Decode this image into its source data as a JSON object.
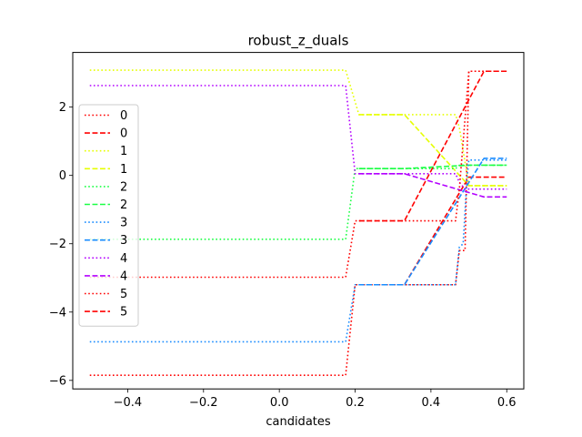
{
  "chart_data": {
    "type": "line",
    "title": "robust_z_duals",
    "xlabel": "candidates",
    "ylabel": "",
    "xlim": [
      -0.545,
      0.645
    ],
    "ylim": [
      -6.25,
      3.6
    ],
    "xticks": [
      -0.4,
      -0.2,
      0.0,
      0.2,
      0.4,
      0.6
    ],
    "xtick_labels": [
      "−0.4",
      "−0.2",
      "0.0",
      "0.2",
      "0.4",
      "0.6"
    ],
    "yticks": [
      -6,
      -4,
      -2,
      0,
      2
    ],
    "ytick_labels": [
      "−6",
      "−4",
      "−2",
      "0",
      "2"
    ],
    "grid": false,
    "legend_position": "left",
    "series": [
      {
        "name": "0",
        "color": "#ff0000",
        "style": "dotted",
        "x": [
          -0.5,
          0.175,
          0.2,
          0.21,
          0.33,
          0.465,
          0.475,
          0.49,
          0.5,
          0.6
        ],
        "y": [
          -5.85,
          -5.85,
          -3.2,
          -3.2,
          -3.2,
          -3.2,
          -2.2,
          -2.2,
          3.05,
          3.05
        ]
      },
      {
        "name": "0",
        "color": "#ff0000",
        "style": "dashed",
        "x": [
          0.21,
          0.33,
          0.5,
          0.6
        ],
        "y": [
          -3.2,
          -3.2,
          -0.05,
          -0.05
        ]
      },
      {
        "name": "1",
        "color": "#e6ff00",
        "style": "dotted",
        "x": [
          -0.5,
          0.175,
          0.21,
          0.465,
          0.475,
          0.5,
          0.6
        ],
        "y": [
          3.08,
          3.08,
          1.78,
          1.78,
          1.4,
          -0.3,
          -0.3
        ]
      },
      {
        "name": "1",
        "color": "#e6ff00",
        "style": "dashed",
        "x": [
          0.21,
          0.33,
          0.5,
          0.6
        ],
        "y": [
          1.78,
          1.78,
          -0.3,
          -0.3
        ]
      },
      {
        "name": "2",
        "color": "#1aff44",
        "style": "dotted",
        "x": [
          -0.5,
          0.175,
          0.2,
          0.465,
          0.475,
          0.6
        ],
        "y": [
          -1.87,
          -1.87,
          0.2,
          0.2,
          0.3,
          0.3
        ]
      },
      {
        "name": "2",
        "color": "#1aff44",
        "style": "dashed",
        "x": [
          0.21,
          0.33,
          0.5,
          0.6
        ],
        "y": [
          0.2,
          0.2,
          0.3,
          0.3
        ]
      },
      {
        "name": "3",
        "color": "#1a8cff",
        "style": "dotted",
        "x": [
          -0.5,
          0.175,
          0.2,
          0.465,
          0.475,
          0.485,
          0.495,
          0.5,
          0.6
        ],
        "y": [
          -4.87,
          -4.87,
          -3.2,
          -3.2,
          -2.1,
          -2.0,
          -0.1,
          0.45,
          0.45
        ]
      },
      {
        "name": "3",
        "color": "#1a8cff",
        "style": "dashed",
        "x": [
          0.21,
          0.33,
          0.54,
          0.6
        ],
        "y": [
          -3.2,
          -3.2,
          0.5,
          0.5
        ]
      },
      {
        "name": "4",
        "color": "#b300ff",
        "style": "dotted",
        "x": [
          -0.5,
          0.175,
          0.2,
          0.465,
          0.475,
          0.49,
          0.6
        ],
        "y": [
          2.63,
          2.63,
          0.05,
          0.05,
          -0.2,
          -0.4,
          -0.4
        ]
      },
      {
        "name": "4",
        "color": "#b300ff",
        "style": "dashed",
        "x": [
          0.21,
          0.33,
          0.54,
          0.6
        ],
        "y": [
          0.05,
          0.05,
          -0.63,
          -0.63
        ]
      },
      {
        "name": "5",
        "color": "#ff0000",
        "style": "dotted",
        "x": [
          -0.5,
          0.175,
          0.2,
          0.465,
          0.475,
          0.5,
          0.6
        ],
        "y": [
          -2.98,
          -2.98,
          -1.33,
          -1.33,
          -0.4,
          3.05,
          3.05
        ]
      },
      {
        "name": "5",
        "color": "#ff0000",
        "style": "dashed",
        "x": [
          0.21,
          0.33,
          0.54,
          0.6
        ],
        "y": [
          -1.33,
          -1.33,
          3.05,
          3.05
        ]
      }
    ]
  }
}
